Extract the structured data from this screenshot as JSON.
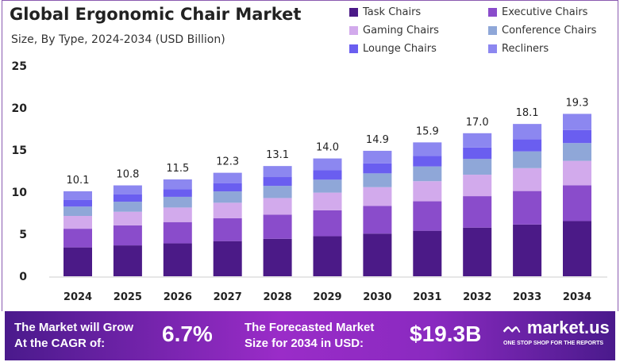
{
  "chart_data": {
    "type": "bar",
    "stacked": true,
    "title": "Global Ergonomic Chair Market",
    "subtitle": "Size, By Type, 2024-2034 (USD Billion)",
    "categories": [
      "2024",
      "2025",
      "2026",
      "2027",
      "2028",
      "2029",
      "2030",
      "2031",
      "2032",
      "2033",
      "2034"
    ],
    "totals": [
      "10.1",
      "10.8",
      "11.5",
      "12.3",
      "13.1",
      "14.0",
      "14.9",
      "15.9",
      "17.0",
      "18.1",
      "19.3"
    ],
    "yticks": [
      "0",
      "5",
      "10",
      "15",
      "20",
      "25"
    ],
    "ylim": [
      0,
      25
    ],
    "legend_position": "top-right",
    "series": [
      {
        "name": "Task Chairs",
        "color": "#4b1a87",
        "values": [
          3.43,
          3.67,
          3.91,
          4.18,
          4.45,
          4.76,
          5.07,
          5.41,
          5.78,
          6.15,
          6.56
        ]
      },
      {
        "name": "Executive Chairs",
        "color": "#8a4ccb",
        "values": [
          2.22,
          2.38,
          2.53,
          2.71,
          2.88,
          3.08,
          3.28,
          3.5,
          3.74,
          3.98,
          4.25
        ]
      },
      {
        "name": "Gaming Chairs",
        "color": "#d2aaec",
        "values": [
          1.52,
          1.62,
          1.73,
          1.85,
          1.97,
          2.1,
          2.24,
          2.39,
          2.55,
          2.72,
          2.9
        ]
      },
      {
        "name": "Conference Chairs",
        "color": "#8fa7d8",
        "values": [
          1.11,
          1.19,
          1.27,
          1.35,
          1.44,
          1.54,
          1.64,
          1.75,
          1.87,
          1.99,
          2.12
        ]
      },
      {
        "name": "Lounge Chairs",
        "color": "#6a5ef0",
        "values": [
          0.81,
          0.86,
          0.92,
          0.98,
          1.05,
          1.12,
          1.19,
          1.27,
          1.36,
          1.45,
          1.54
        ]
      },
      {
        "name": "Recliners",
        "color": "#8c87f0",
        "values": [
          1.01,
          1.08,
          1.15,
          1.23,
          1.31,
          1.4,
          1.49,
          1.59,
          1.7,
          1.81,
          1.93
        ]
      }
    ]
  },
  "banner": {
    "cagr_label_1": "The Market will Grow",
    "cagr_label_2": "At the CAGR of:",
    "cagr_value": "6.7%",
    "forecast_label_1": "The Forecasted Market",
    "forecast_label_2": "Size for 2034 in USD:",
    "forecast_value": "$19.3B",
    "brand": "market.us",
    "brand_tagline": "ONE STOP SHOP FOR THE REPORTS"
  }
}
